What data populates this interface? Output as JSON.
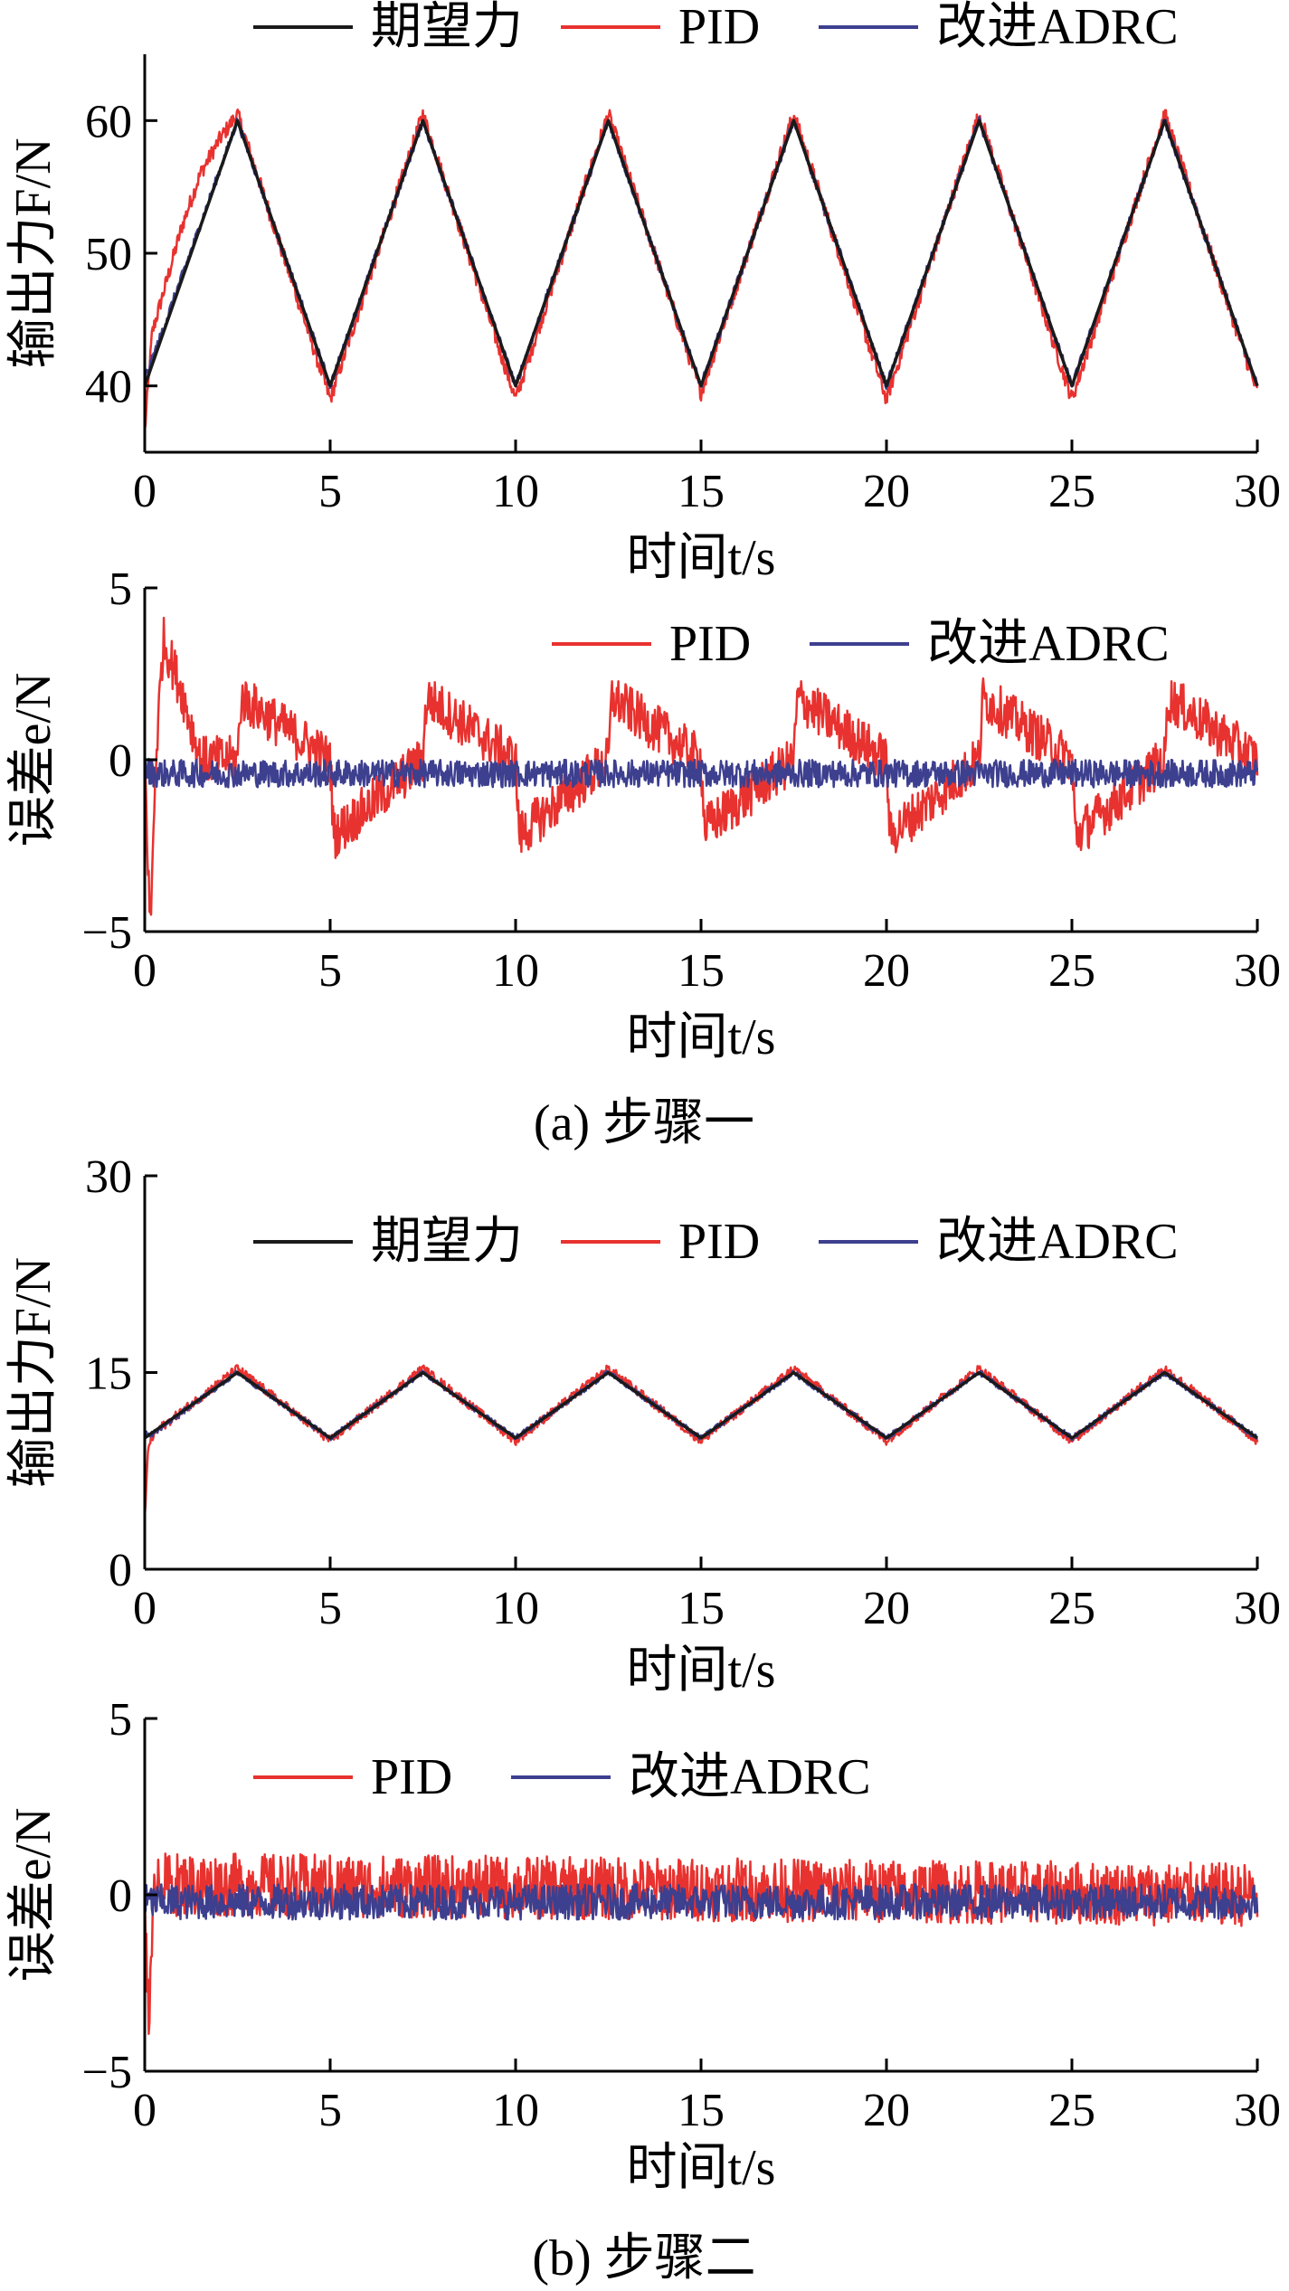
{
  "colors": {
    "desired": "#1a1a1a",
    "pid": "#e8322f",
    "adrc": "#3d3f8f",
    "axis": "#000000"
  },
  "captions": {
    "a": "(a) 步骤一",
    "b": "(b) 步骤二"
  },
  "chart_data": [
    {
      "type": "line",
      "panel": "a-force",
      "xlabel": "时间t/s",
      "ylabel": "输出力F/N",
      "xlim": [
        0,
        30
      ],
      "ylim": [
        35,
        65
      ],
      "xticks": [
        "0",
        "5",
        "10",
        "15",
        "20",
        "25",
        "30"
      ],
      "yticks": [
        {
          "value": 40,
          "label": "40"
        },
        {
          "value": 50,
          "label": "50"
        },
        {
          "value": 60,
          "label": "60"
        }
      ],
      "legend": [
        "期望力",
        "PID",
        "改进ADRC"
      ],
      "legend_position": "top",
      "series": [
        {
          "name": "期望力",
          "x": [
            0,
            2.5,
            5,
            7.5,
            10,
            12.5,
            15,
            17.5,
            20,
            22.5,
            25,
            27.5,
            30
          ],
          "y": [
            40,
            60,
            40,
            60,
            40,
            60,
            40,
            60,
            40,
            60,
            40,
            60,
            40
          ]
        },
        {
          "name": "PID",
          "x": [
            0,
            0.2,
            0.5,
            1,
            1.5,
            2,
            2.5,
            5,
            7.5,
            10,
            12.5,
            15,
            17.5,
            20,
            22.5,
            25,
            27.5,
            30
          ],
          "y": [
            36.5,
            44,
            47,
            52,
            56,
            58.5,
            60.5,
            39,
            60.5,
            39,
            60.5,
            39.5,
            60.5,
            39,
            60.5,
            39,
            60.5,
            39.5
          ]
        },
        {
          "name": "改进ADRC",
          "x": [
            0,
            0.2,
            2.5,
            5,
            7.5,
            10,
            12.5,
            15,
            17.5,
            20,
            22.5,
            25,
            27.5,
            30
          ],
          "y": [
            40.5,
            42,
            60,
            40,
            60,
            40,
            60,
            40,
            60,
            40,
            60,
            40,
            60,
            40
          ]
        }
      ]
    },
    {
      "type": "line",
      "panel": "a-error",
      "xlabel": "时间t/s",
      "ylabel": "误差e/N",
      "xlim": [
        0,
        30
      ],
      "ylim": [
        -5,
        5
      ],
      "xticks": [
        "0",
        "5",
        "10",
        "15",
        "20",
        "25",
        "30"
      ],
      "yticks": [
        {
          "value": -5,
          "label": "−5"
        },
        {
          "value": 0,
          "label": "0"
        },
        {
          "value": 5,
          "label": "5"
        }
      ],
      "legend": [
        "PID",
        "改进ADRC"
      ],
      "legend_position": "top-right",
      "series": [
        {
          "name": "PID",
          "x": [
            0,
            0.15,
            0.3,
            0.5,
            1,
            1.5,
            2.5,
            2.6,
            5,
            5.1,
            7.5,
            7.6,
            10,
            10.1,
            12.5,
            12.6,
            15,
            15.1,
            17.5,
            17.6,
            20,
            20.1,
            22.5,
            22.6,
            25,
            25.1,
            27.5,
            27.6,
            30
          ],
          "y": [
            0,
            -5,
            0,
            3.5,
            2,
            0,
            0,
            1.8,
            0,
            -2.2,
            0,
            1.8,
            0,
            -2.2,
            0,
            1.8,
            0,
            -2,
            0,
            1.8,
            0,
            -2.2,
            0,
            1.8,
            0,
            -2.2,
            0,
            1.8,
            0
          ]
        },
        {
          "name": "改进ADRC",
          "x": [
            0,
            0.3,
            5,
            10,
            15,
            20,
            25,
            30
          ],
          "y": [
            -0.3,
            -0.4,
            -0.4,
            -0.4,
            -0.4,
            -0.4,
            -0.4,
            -0.4
          ]
        }
      ]
    },
    {
      "type": "line",
      "panel": "b-force",
      "xlabel": "时间t/s",
      "ylabel": "输出力F/N",
      "xlim": [
        0,
        30
      ],
      "ylim": [
        0,
        30
      ],
      "xticks": [
        "0",
        "5",
        "10",
        "15",
        "20",
        "25",
        "30"
      ],
      "yticks": [
        {
          "value": 0,
          "label": "0"
        },
        {
          "value": 15,
          "label": "15"
        },
        {
          "value": 30,
          "label": "30"
        }
      ],
      "legend": [
        "期望力",
        "PID",
        "改进ADRC"
      ],
      "legend_position": "top",
      "series": [
        {
          "name": "期望力",
          "x": [
            0,
            2.5,
            5,
            7.5,
            10,
            12.5,
            15,
            17.5,
            20,
            22.5,
            25,
            27.5,
            30
          ],
          "y": [
            10,
            15,
            10,
            15,
            10,
            15,
            10,
            15,
            10,
            15,
            10,
            15,
            10
          ]
        },
        {
          "name": "PID",
          "x": [
            0,
            0.1,
            0.3,
            2.5,
            5,
            7.5,
            10,
            12.5,
            15,
            17.5,
            20,
            22.5,
            25,
            27.5,
            30
          ],
          "y": [
            4,
            9.5,
            10.5,
            15.3,
            9.8,
            15.3,
            9.8,
            15.3,
            9.8,
            15.3,
            9.8,
            15.3,
            9.8,
            15.3,
            9.8
          ]
        },
        {
          "name": "改进ADRC",
          "x": [
            0,
            0.2,
            2.5,
            5,
            7.5,
            10,
            12.5,
            15,
            17.5,
            20,
            22.5,
            25,
            27.5,
            30
          ],
          "y": [
            10.3,
            10.3,
            15,
            10,
            15,
            10,
            15,
            10,
            15,
            10,
            15,
            10,
            15,
            10
          ]
        }
      ]
    },
    {
      "type": "line",
      "panel": "b-error",
      "xlabel": "时间t/s",
      "ylabel": "误差e/N",
      "xlim": [
        0,
        30
      ],
      "ylim": [
        -5,
        5
      ],
      "xticks": [
        "0",
        "5",
        "10",
        "15",
        "20",
        "25",
        "30"
      ],
      "yticks": [
        {
          "value": -5,
          "label": "−5"
        },
        {
          "value": 0,
          "label": "0"
        },
        {
          "value": 5,
          "label": "5"
        }
      ],
      "legend": [
        "PID",
        "改进ADRC"
      ],
      "legend_position": "top",
      "series": [
        {
          "name": "PID",
          "x": [
            0,
            0.12,
            0.3,
            0.5,
            30
          ],
          "y": [
            0,
            -3.5,
            0.8,
            0.3,
            0
          ],
          "noise": 0.9
        },
        {
          "name": "改进ADRC",
          "x": [
            0,
            30
          ],
          "y": [
            -0.2,
            -0.2
          ],
          "noise": 0.5
        }
      ]
    }
  ]
}
